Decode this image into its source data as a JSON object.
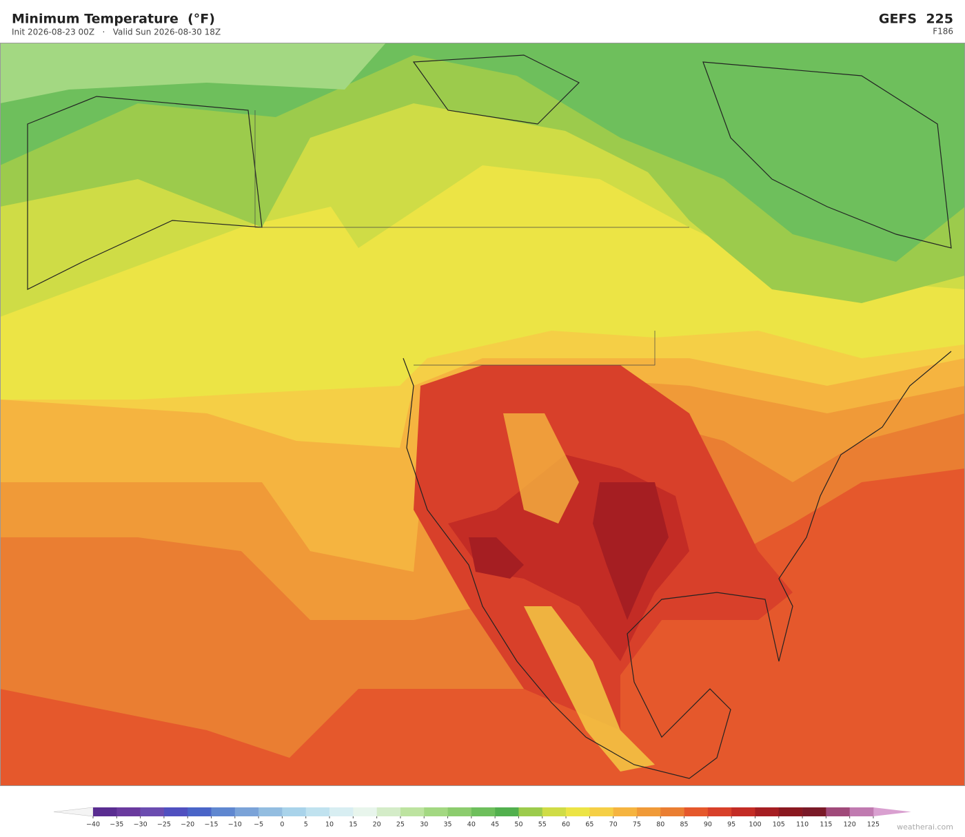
{
  "header": {
    "title": "Minimum Temperature  (°F)",
    "subtitle": "Init 2026-08-23 00Z   ·   Valid Sun 2026-08-30 18Z",
    "model": "GEFS  225",
    "forecast_hour": "F186"
  },
  "colorbar": {
    "ticks": [
      {
        "value": -40,
        "label": "−40"
      },
      {
        "value": -35,
        "label": "−35"
      },
      {
        "value": -30,
        "label": "−30"
      },
      {
        "value": -25,
        "label": "−25"
      },
      {
        "value": -20,
        "label": "−20"
      },
      {
        "value": -15,
        "label": "−15"
      },
      {
        "value": -10,
        "label": "−10"
      },
      {
        "value": -5,
        "label": "−5"
      },
      0,
      5,
      10,
      15,
      20,
      25,
      30,
      35,
      40,
      45,
      50,
      55,
      60,
      65,
      70,
      75,
      80,
      85,
      90,
      95,
      100,
      105,
      110,
      115,
      120,
      125
    ],
    "colors": [
      "#5a2d91",
      "#6a3a9e",
      "#6b4cb0",
      "#5050c0",
      "#4a65c8",
      "#5f87d0",
      "#7ba3d8",
      "#93bde0",
      "#a9d3ea",
      "#c0e2ef",
      "#d8eef2",
      "#e8f5ec",
      "#d4ecc8",
      "#bde3a0",
      "#a3d882",
      "#8ccc6e",
      "#6ebf5c",
      "#52b04e",
      "#9ccb4c",
      "#cfdc46",
      "#ece445",
      "#f5cf46",
      "#f5b440",
      "#f09a38",
      "#ea7e32",
      "#e5582c",
      "#d8402a",
      "#c32c25",
      "#a51e22",
      "#8a1820",
      "#7a1a28",
      "#a04a7a",
      "#c07ab0"
    ],
    "under_color": "#f4f4f4",
    "over_color": "#d9a0d0"
  },
  "watermark": "weatherai.com"
}
